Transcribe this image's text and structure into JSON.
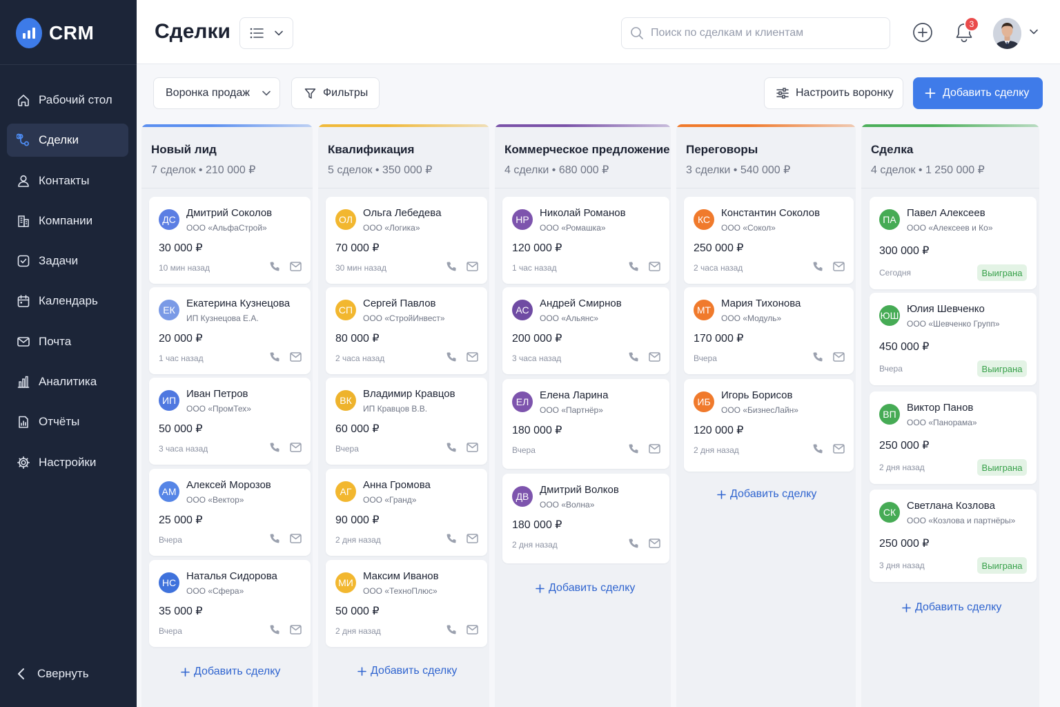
{
  "app": {
    "logo_text": "CRM"
  },
  "sidebar": {
    "items": [
      {
        "label": "Рабочий стол",
        "icon": "home-icon"
      },
      {
        "label": "Сделки",
        "icon": "deals-icon",
        "active": true
      },
      {
        "label": "Контакты",
        "icon": "user-icon"
      },
      {
        "label": "Компании",
        "icon": "building-icon"
      },
      {
        "label": "Задачи",
        "icon": "checkbox-icon"
      },
      {
        "label": "Календарь",
        "icon": "calendar-icon"
      },
      {
        "label": "Почта",
        "icon": "mail-icon"
      },
      {
        "label": "Аналитика",
        "icon": "analytics-icon"
      },
      {
        "label": "Отчёты",
        "icon": "report-icon"
      },
      {
        "label": "Настройки",
        "icon": "gear-icon"
      }
    ],
    "collapse_label": "Свернуть"
  },
  "header": {
    "title": "Сделки",
    "search_placeholder": "Поиск по сделкам и клиентам",
    "notifications_count": "3"
  },
  "toolbar": {
    "funnel_label": "Воронка продаж",
    "filters_label": "Фильтры",
    "configure_label": "Настроить воронку",
    "add_deal_label": "Добавить сделку"
  },
  "colors": {
    "accent": "#3f7be9",
    "won_text": "#36a049",
    "won_bg": "#e3f3e5"
  },
  "board": {
    "add_deal_label": "Добавить сделку",
    "won_label": "Выиграна",
    "columns": [
      {
        "title": "Новый лид",
        "stats": "7 сделок • 210 000 ₽",
        "color": "#5b8ff0",
        "deals": [
          {
            "initials": "ДС",
            "name": "Дмитрий Соколов",
            "company": "ООО «АльфаСтрой»",
            "amount": "30 000 ₽",
            "time": "10 мин назад",
            "color": "#5b7ee3"
          },
          {
            "initials": "ЕК",
            "name": "Екатерина Кузнецова",
            "company": "ИП Кузнецова Е.А.",
            "amount": "20 000 ₽",
            "time": "1 час назад",
            "color": "#7a9ae6"
          },
          {
            "initials": "ИП",
            "name": "Иван Петров",
            "company": "ООО «ПромТех»",
            "amount": "50 000 ₽",
            "time": "3 часа назад",
            "color": "#4f78e0"
          },
          {
            "initials": "АМ",
            "name": "Алексей Морозов",
            "company": "ООО «Вектор»",
            "amount": "25 000 ₽",
            "time": "Вчера",
            "color": "#5585e6"
          },
          {
            "initials": "НС",
            "name": "Наталья Сидорова",
            "company": "ООО «Сфера»",
            "amount": "35 000 ₽",
            "time": "Вчера",
            "color": "#3f72dc"
          }
        ]
      },
      {
        "title": "Квалификация",
        "stats": "5 сделок • 350 000 ₽",
        "color": "#f0b93a",
        "deals": [
          {
            "initials": "ОЛ",
            "name": "Ольга Лебедева",
            "company": "ООО «Логика»",
            "amount": "70 000 ₽",
            "time": "30 мин назад",
            "color": "#f2b72f"
          },
          {
            "initials": "СП",
            "name": "Сергей Павлов",
            "company": "ООО «СтройИнвест»",
            "amount": "80 000 ₽",
            "time": "2 часа назад",
            "color": "#f2b72f"
          },
          {
            "initials": "ВК",
            "name": "Владимир Кравцов",
            "company": "ИП Кравцов В.В.",
            "amount": "60 000 ₽",
            "time": "Вчера",
            "color": "#eeb32c"
          },
          {
            "initials": "АГ",
            "name": "Анна Громова",
            "company": "ООО «Гранд»",
            "amount": "90 000 ₽",
            "time": "2 дня назад",
            "color": "#f2b72f"
          },
          {
            "initials": "МИ",
            "name": "Максим Иванов",
            "company": "ООО «ТехноПлюс»",
            "amount": "50 000 ₽",
            "time": "2 дня назад",
            "color": "#f2b72f"
          }
        ]
      },
      {
        "title": "Коммерческое предложение",
        "stats": "4 сделки • 680 000 ₽",
        "color": "#7a52a8",
        "deals": [
          {
            "initials": "НР",
            "name": "Николай Романов",
            "company": "ООО «Ромашка»",
            "amount": "120 000 ₽",
            "time": "1 час назад",
            "color": "#7d54ad"
          },
          {
            "initials": "АС",
            "name": "Андрей Смирнов",
            "company": "ООО «Альянс»",
            "amount": "200 000 ₽",
            "time": "3 часа назад",
            "color": "#6f4ba3"
          },
          {
            "initials": "ЕЛ",
            "name": "Елена Ларина",
            "company": "ООО «Партнёр»",
            "amount": "180 000 ₽",
            "time": "Вчера",
            "color": "#7d54ad"
          },
          {
            "initials": "ДВ",
            "name": "Дмитрий Волков",
            "company": "ООО «Волна»",
            "amount": "180 000 ₽",
            "time": "2 дня назад",
            "color": "#7d54ad"
          }
        ]
      },
      {
        "title": "Переговоры",
        "stats": "3 сделки • 540 000 ₽",
        "color": "#f07a2c",
        "deals": [
          {
            "initials": "КС",
            "name": "Константин Соколов",
            "company": "ООО «Сокол»",
            "amount": "250 000 ₽",
            "time": "2 часа назад",
            "color": "#f07a2c"
          },
          {
            "initials": "МТ",
            "name": "Мария Тихонова",
            "company": "ООО «Модуль»",
            "amount": "170 000 ₽",
            "time": "Вчера",
            "color": "#f07a2c"
          },
          {
            "initials": "ИБ",
            "name": "Игорь Борисов",
            "company": "ООО «БизнесЛайн»",
            "amount": "120 000 ₽",
            "time": "2 дня назад",
            "color": "#f07a2c"
          }
        ]
      },
      {
        "title": "Сделка",
        "stats": "4 сделок • 1 250 000 ₽",
        "color": "#4caf5a",
        "deals": [
          {
            "initials": "ПА",
            "name": "Павел Алексеев",
            "company": "ООО «Алексеев и Ко»",
            "amount": "300 000 ₽",
            "time": "Сегодня",
            "color": "#46ab55"
          },
          {
            "initials": "ЮШ",
            "name": "Юлия Шевченко",
            "company": "ООО «Шевченко Групп»",
            "amount": "450 000 ₽",
            "time": "Вчера",
            "color": "#46ab55"
          },
          {
            "initials": "ВП",
            "name": "Виктор Панов",
            "company": "ООО «Панорама»",
            "amount": "250 000 ₽",
            "time": "2 дня назад",
            "color": "#46ab55"
          },
          {
            "initials": "СК",
            "name": "Светлана Козлова",
            "company": "ООО «Козлова и партнёры»",
            "amount": "250 000 ₽",
            "time": "3 дня назад",
            "color": "#46ab55"
          }
        ]
      }
    ]
  }
}
